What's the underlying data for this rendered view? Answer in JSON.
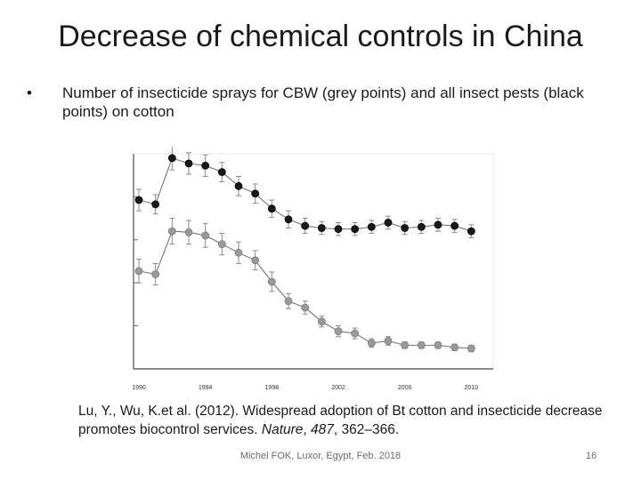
{
  "slide": {
    "title": "Decrease of chemical controls in China",
    "bullet_symbol": "•",
    "bullet_text": "Number of insecticide sprays for CBW (grey points) and all insect pests (black points) on cotton",
    "citation": {
      "authors": "Lu, Y., Wu, K.et al. (2012). Widespread adoption of Bt cotton and insecticide decrease promotes biocontrol services. ",
      "journal": "Nature",
      "volume": "487",
      "pages": ", 362–366."
    },
    "footer": "Michel FOK, Luxor, Egypt, Feb. 2018",
    "slide_number": "16"
  },
  "colors": {
    "all_pests": "#1a1a1a",
    "cbw": "#9a9a9a",
    "error_bar": "#8a8a8a",
    "line": "#777777",
    "axis": "#666666"
  },
  "chart_data": {
    "type": "line",
    "title": "",
    "xlabel": "",
    "ylabel": "",
    "x_tick_labels": [
      "1990",
      "1994",
      "1998",
      "2002",
      "2006",
      "2010"
    ],
    "xlim": [
      1990,
      2011
    ],
    "ylim": [
      0,
      20
    ],
    "x": [
      1990,
      1991,
      1992,
      1993,
      1994,
      1995,
      1996,
      1997,
      1998,
      1999,
      2000,
      2001,
      2002,
      2003,
      2004,
      2005,
      2006,
      2007,
      2008,
      2009,
      2010
    ],
    "series": [
      {
        "name": "All insect pests (black points)",
        "color": "black",
        "values": [
          15.7,
          15.3,
          19.6,
          19.1,
          18.9,
          18.3,
          17.0,
          16.3,
          14.9,
          13.9,
          13.3,
          13.1,
          13.0,
          13.0,
          13.2,
          13.6,
          13.1,
          13.2,
          13.4,
          13.3,
          12.8
        ],
        "errors": [
          1.0,
          0.9,
          1.1,
          1.0,
          1.0,
          0.9,
          0.9,
          0.9,
          0.8,
          0.8,
          0.7,
          0.6,
          0.6,
          0.6,
          0.6,
          0.6,
          0.6,
          0.6,
          0.6,
          0.6,
          0.6
        ]
      },
      {
        "name": "CBW (grey points)",
        "color": "grey",
        "values": [
          9.1,
          8.8,
          12.8,
          12.7,
          12.4,
          11.6,
          10.8,
          10.1,
          8.1,
          6.3,
          5.7,
          4.4,
          3.5,
          3.3,
          2.4,
          2.6,
          2.2,
          2.2,
          2.2,
          2.0,
          1.9
        ],
        "errors": [
          1.1,
          1.0,
          1.2,
          1.1,
          1.1,
          1.0,
          1.0,
          0.9,
          0.9,
          0.7,
          0.6,
          0.5,
          0.5,
          0.5,
          0.4,
          0.4,
          0.3,
          0.3,
          0.3,
          0.3,
          0.3
        ]
      }
    ]
  }
}
